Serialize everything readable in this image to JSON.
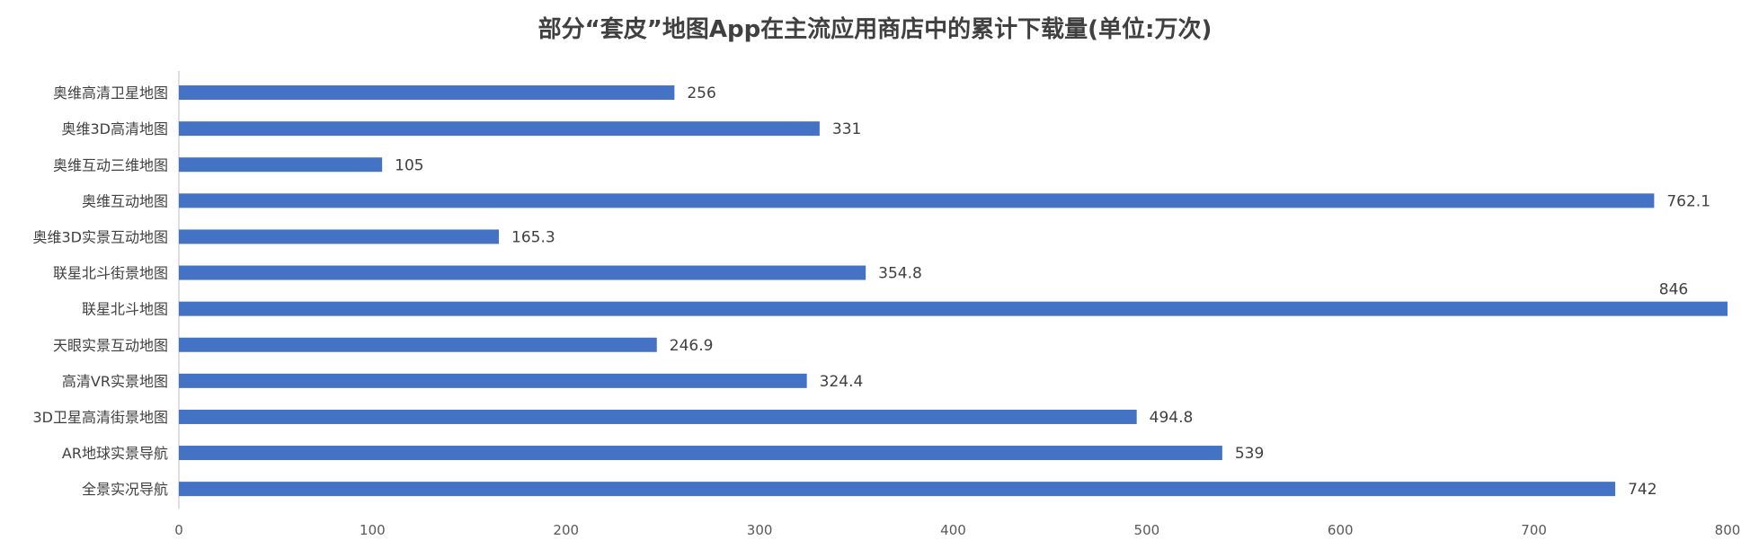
{
  "chart_data": {
    "type": "bar",
    "orientation": "horizontal",
    "title": "部分“套皮”地图App在主流应用商店中的累计下载量(单位:万次)",
    "xlabel": "",
    "ylabel": "",
    "categories": [
      "奥维高清卫星地图",
      "奥维3D高清地图",
      "奥维互动三维地图",
      "奥维互动地图",
      "奥维3D实景互动地图",
      "联星北斗街景地图",
      "联星北斗地图",
      "天眼实景互动地图",
      "高清VR实景地图",
      "3D卫星高清街景地图",
      "AR地球实景导航",
      "全景实况导航"
    ],
    "values": [
      256,
      331,
      105,
      762.1,
      165.3,
      354.8,
      846,
      246.9,
      324.4,
      494.8,
      539,
      742
    ],
    "value_labels": [
      "256",
      "331",
      "105",
      "762.1",
      "165.3",
      "354.8",
      "846",
      "246.9",
      "324.4",
      "494.8",
      "539",
      "742"
    ],
    "xlim": [
      0,
      800
    ],
    "x_ticks": [
      0,
      100,
      200,
      300,
      400,
      500,
      600,
      700,
      800
    ],
    "grid": false,
    "legend": "none",
    "bar_color": "#4472C4"
  }
}
